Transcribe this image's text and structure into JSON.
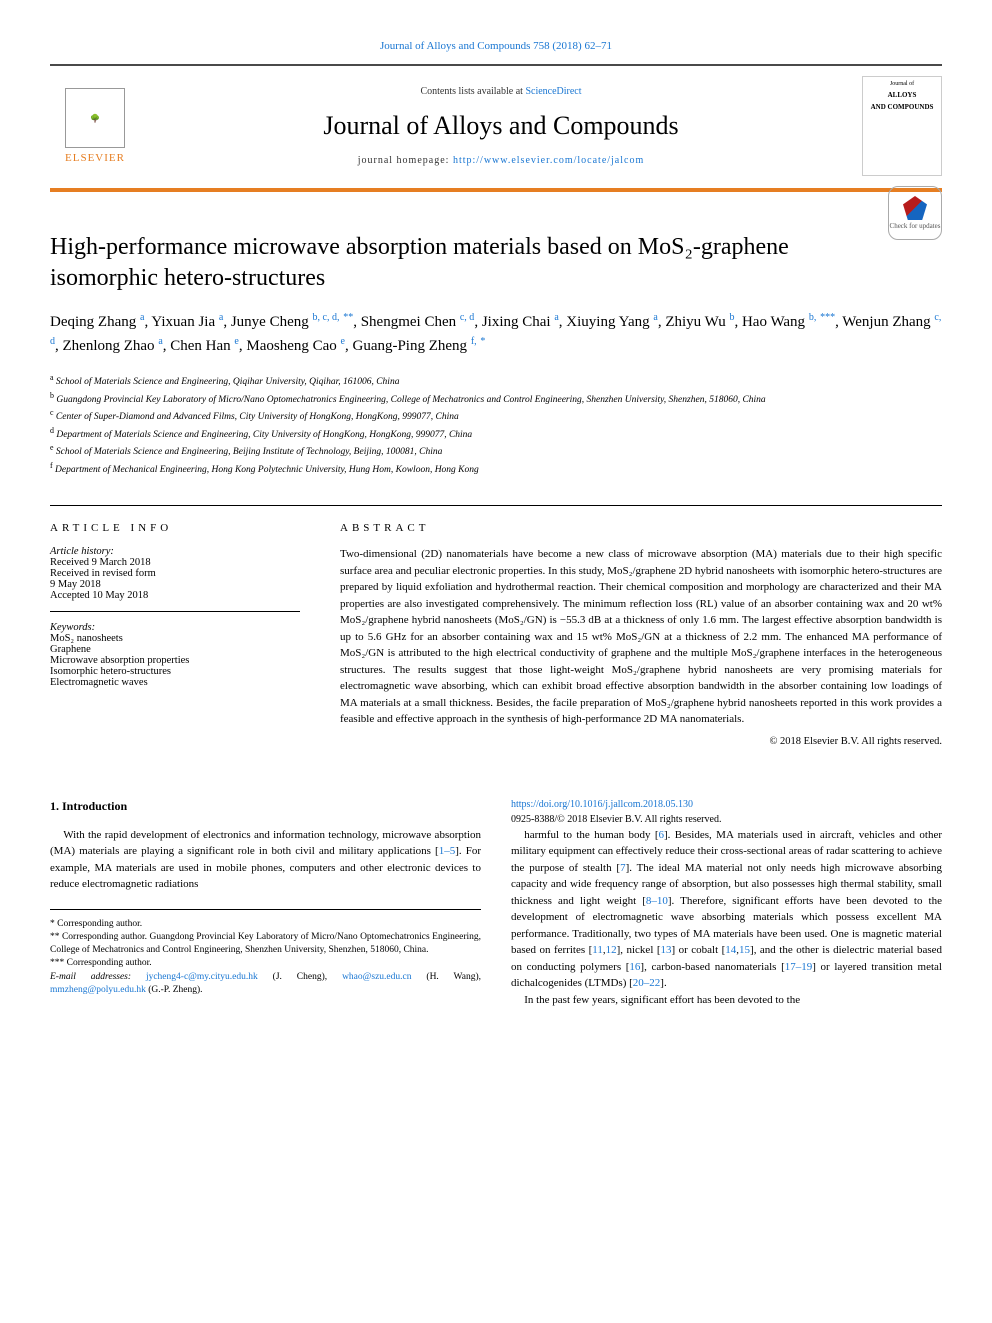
{
  "journal_ref": "Journal of Alloys and Compounds 758 (2018) 62–71",
  "header": {
    "contents_prefix": "Contents lists available at ",
    "contents_link": "ScienceDirect",
    "journal_title": "Journal of Alloys and Compounds",
    "homepage_prefix": "journal homepage: ",
    "homepage_url": "http://www.elsevier.com/locate/jalcom",
    "publisher": "ELSEVIER",
    "cover_line1": "Journal of",
    "cover_line2": "ALLOYS",
    "cover_line3": "AND COMPOUNDS"
  },
  "check_updates": "Check for updates",
  "title": "High-performance microwave absorption materials based on MoS₂-graphene isomorphic hetero-structures",
  "authors_html": "Deqing Zhang <sup class='aff-link'>a</sup>, Yixuan Jia <sup class='aff-link'>a</sup>, Junye Cheng <sup class='aff-link'>b, c, d,</sup> <sup class='star'>**</sup>, Shengmei Chen <sup class='aff-link'>c, d</sup>, Jixing Chai <sup class='aff-link'>a</sup>, Xiuying Yang <sup class='aff-link'>a</sup>, Zhiyu Wu <sup class='aff-link'>b</sup>, Hao Wang <sup class='aff-link'>b,</sup> <sup class='star'>***</sup>, Wenjun Zhang <sup class='aff-link'>c, d</sup>, Zhenlong Zhao <sup class='aff-link'>a</sup>, Chen Han <sup class='aff-link'>e</sup>, Maosheng Cao <sup class='aff-link'>e</sup>, Guang-Ping Zheng <sup class='aff-link'>f,</sup> <sup class='star'>*</sup>",
  "affiliations": [
    {
      "sup": "a",
      "text": "School of Materials Science and Engineering, Qiqihar University, Qiqihar, 161006, China"
    },
    {
      "sup": "b",
      "text": "Guangdong Provincial Key Laboratory of Micro/Nano Optomechatronics Engineering, College of Mechatronics and Control Engineering, Shenzhen University, Shenzhen, 518060, China"
    },
    {
      "sup": "c",
      "text": "Center of Super-Diamond and Advanced Films, City University of HongKong, HongKong, 999077, China"
    },
    {
      "sup": "d",
      "text": "Department of Materials Science and Engineering, City University of HongKong, HongKong, 999077, China"
    },
    {
      "sup": "e",
      "text": "School of Materials Science and Engineering, Beijing Institute of Technology, Beijing, 100081, China"
    },
    {
      "sup": "f",
      "text": "Department of Mechanical Engineering, Hong Kong Polytechnic University, Hung Hom, Kowloon, Hong Kong"
    }
  ],
  "article_info": {
    "head": "ARTICLE INFO",
    "history_label": "Article history:",
    "history": [
      "Received 9 March 2018",
      "Received in revised form",
      "9 May 2018",
      "Accepted 10 May 2018"
    ],
    "keywords_label": "Keywords:",
    "keywords": [
      "MoS₂ nanosheets",
      "Graphene",
      "Microwave absorption properties",
      "Isomorphic hetero-structures",
      "Electromagnetic waves"
    ]
  },
  "abstract": {
    "head": "ABSTRACT",
    "text": "Two-dimensional (2D) nanomaterials have become a new class of microwave absorption (MA) materials due to their high specific surface area and peculiar electronic properties. In this study, MoS₂/graphene 2D hybrid nanosheets with isomorphic hetero-structures are prepared by liquid exfoliation and hydrothermal reaction. Their chemical composition and morphology are characterized and their MA properties are also investigated comprehensively. The minimum reflection loss (RL) value of an absorber containing wax and 20 wt% MoS₂/graphene hybrid nanosheets (MoS₂/GN) is −55.3 dB at a thickness of only 1.6 mm. The largest effective absorption bandwidth is up to 5.6 GHz for an absorber containing wax and 15 wt% MoS₂/GN at a thickness of 2.2 mm. The enhanced MA performance of MoS₂/GN is attributed to the high electrical conductivity of graphene and the multiple MoS₂/graphene interfaces in the heterogeneous structures. The results suggest that those light-weight MoS₂/graphene hybrid nanosheets are very promising materials for electromagnetic wave absorbing, which can exhibit broad effective absorption bandwidth in the absorber containing low loadings of MA materials at a small thickness. Besides, the facile preparation of MoS₂/graphene hybrid nanosheets reported in this work provides a feasible and effective approach in the synthesis of high-performance 2D MA nanomaterials.",
    "copyright": "© 2018 Elsevier B.V. All rights reserved."
  },
  "intro": {
    "head": "1. Introduction",
    "para1_html": "With the rapid development of electronics and information technology, microwave absorption (MA) materials are playing a significant role in both civil and military applications [<span class='ref-link'>1–5</span>]. For example, MA materials are used in mobile phones, computers and other electronic devices to reduce electromagnetic radiations",
    "para2_html": "harmful to the human body [<span class='ref-link'>6</span>]. Besides, MA materials used in aircraft, vehicles and other military equipment can effectively reduce their cross-sectional areas of radar scattering to achieve the purpose of stealth [<span class='ref-link'>7</span>]. The ideal MA material not only needs high microwave absorbing capacity and wide frequency range of absorption, but also possesses high thermal stability, small thickness and light weight [<span class='ref-link'>8–10</span>]. Therefore, significant efforts have been devoted to the development of electromagnetic wave absorbing materials which possess excellent MA performance. Traditionally, two types of MA materials have been used. One is magnetic material based on ferrites [<span class='ref-link'>11</span>,<span class='ref-link'>12</span>], nickel [<span class='ref-link'>13</span>] or cobalt [<span class='ref-link'>14</span>,<span class='ref-link'>15</span>], and the other is dielectric material based on conducting polymers [<span class='ref-link'>16</span>], carbon-based nanomaterials [<span class='ref-link'>17–19</span>] or layered transition metal dichalcogenides (LTMDs) [<span class='ref-link'>20–22</span>].",
    "para3": "In the past few years, significant effort has been devoted to the"
  },
  "footnotes": {
    "c1": "* Corresponding author.",
    "c2": "** Corresponding author. Guangdong Provincial Key Laboratory of Micro/Nano Optomechatronics Engineering, College of Mechatronics and Control Engineering, Shenzhen University, Shenzhen, 518060, China.",
    "c3": "*** Corresponding author.",
    "emails_label": "E-mail addresses: ",
    "email1": "jycheng4-c@my.cityu.edu.hk",
    "email1_who": " (J. Cheng), ",
    "email2": "whao@szu.edu.cn",
    "email2_who": " (H. Wang), ",
    "email3": "mmzheng@polyu.edu.hk",
    "email3_who": " (G.-P. Zheng)."
  },
  "doi": {
    "url": "https://doi.org/10.1016/j.jallcom.2018.05.130",
    "issn": "0925-8388/© 2018 Elsevier B.V. All rights reserved."
  },
  "colors": {
    "link": "#1976d2",
    "accent_orange": "#e67e22",
    "text": "#000000",
    "rule": "#000000"
  }
}
